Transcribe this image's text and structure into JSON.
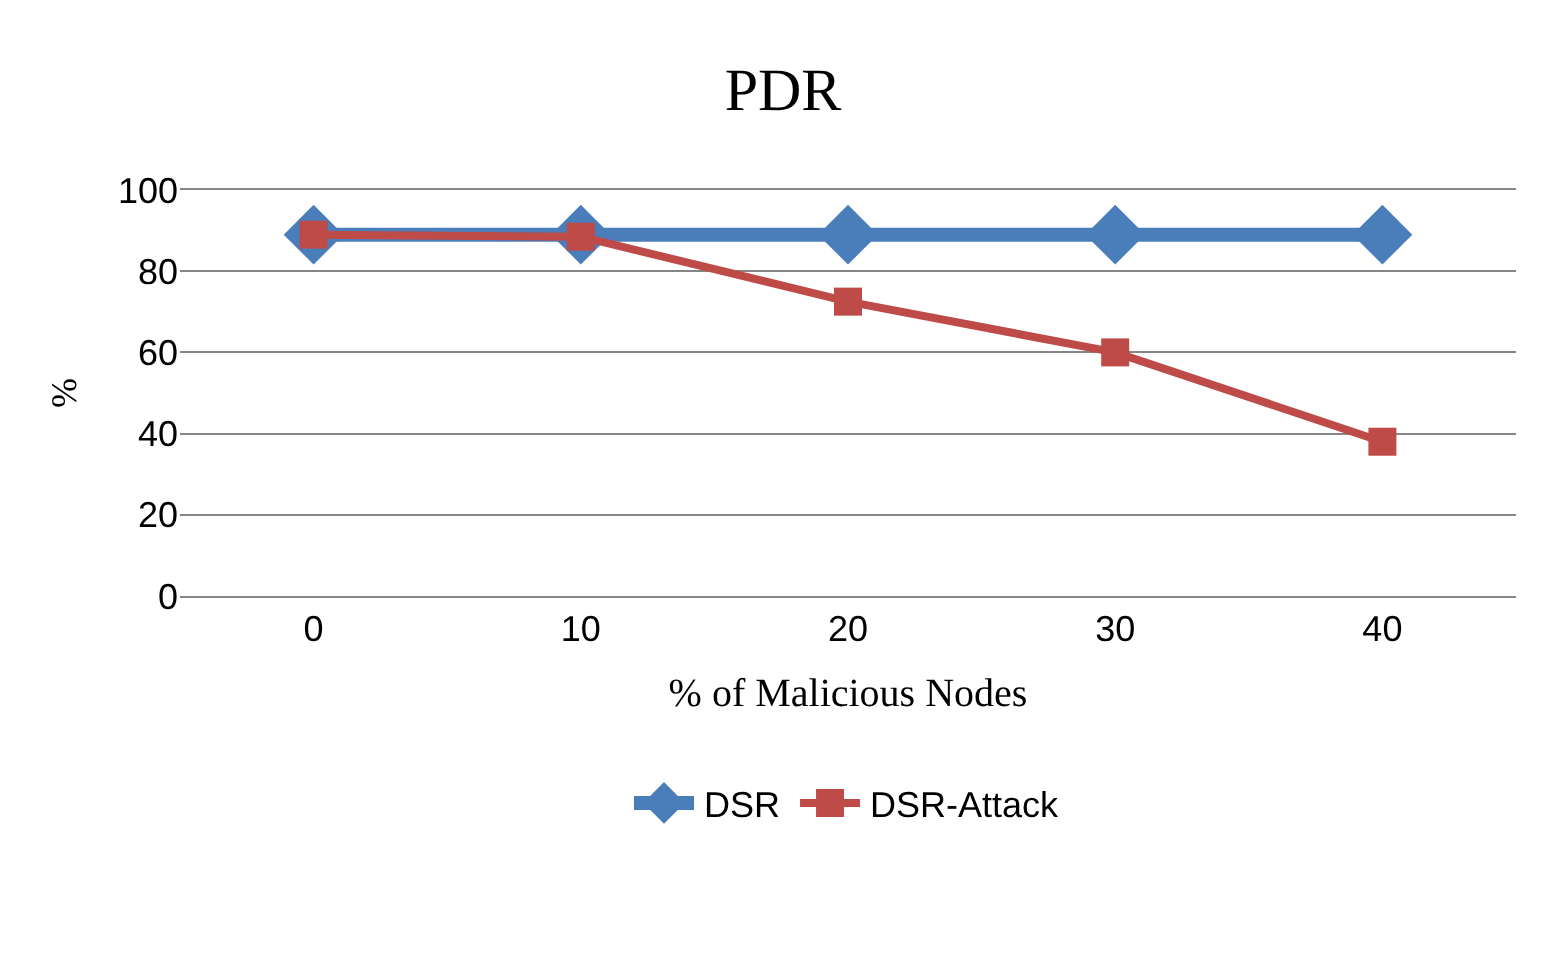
{
  "chart_data": {
    "type": "line",
    "title": "PDR",
    "xlabel": "% of Malicious Nodes",
    "ylabel": "%",
    "categories": [
      "0",
      "10",
      "20",
      "30",
      "40"
    ],
    "series": [
      {
        "name": "DSR",
        "color": "#4a7ebb",
        "marker": "diamond",
        "values": [
          89,
          89,
          89,
          89,
          89
        ]
      },
      {
        "name": "DSR-Attack",
        "color": "#be4b48",
        "marker": "square",
        "values": [
          89,
          88.5,
          72.5,
          60,
          38
        ]
      }
    ],
    "ylim": [
      0,
      100
    ],
    "yticks": [
      0,
      20,
      40,
      60,
      80,
      100
    ],
    "grid": "y",
    "legend": "bottom",
    "line_style": "solid"
  }
}
